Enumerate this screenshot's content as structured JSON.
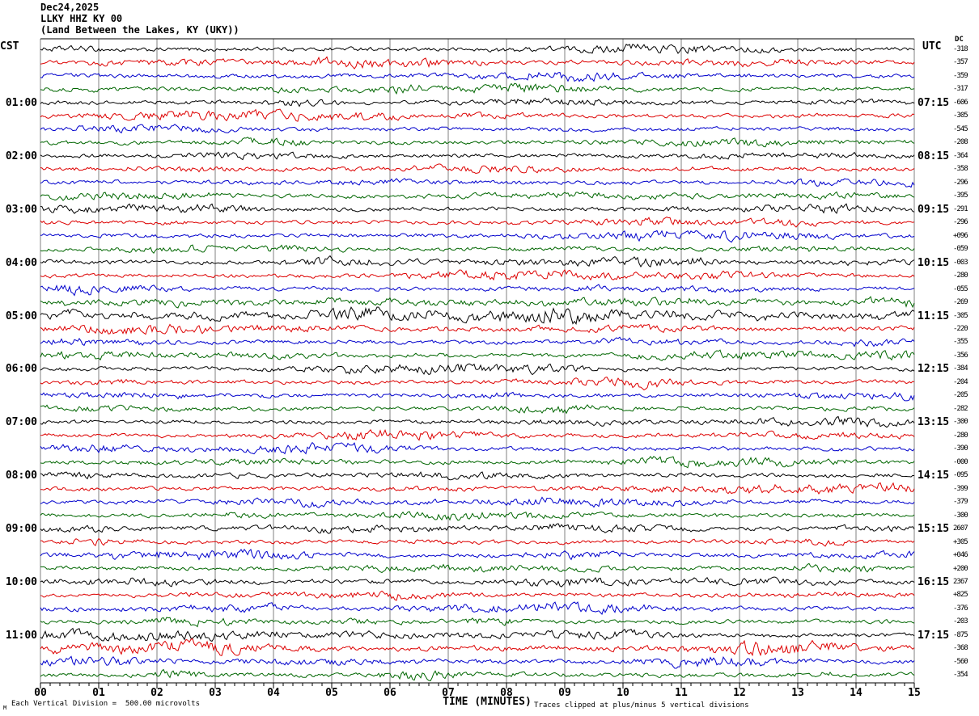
{
  "title": {
    "date": "Dec24,2025",
    "station": "LLKY HHZ KY 00",
    "location": "(Land Between the Lakes, KY (UKY))"
  },
  "axis": {
    "left_header": "CST",
    "right_header": "UTC",
    "dc_header": "DC",
    "x_title": "TIME (MINUTES)",
    "x_tick_labels": [
      "00",
      "01",
      "02",
      "03",
      "04",
      "05",
      "06",
      "07",
      "08",
      "09",
      "10",
      "11",
      "12",
      "13",
      "14",
      "15"
    ]
  },
  "footer": {
    "scale_note": "Each Vertical Division =  500.00 microvolts",
    "clip_note": "Traces clipped at plus/minus 5 vertical divisions",
    "watermark": "M"
  },
  "palette": {
    "black": "#000000",
    "red": "#dd0000",
    "blue": "#0000cc",
    "green": "#006600",
    "grid": "#808080",
    "frame": "#000000"
  },
  "chart_data": {
    "type": "line",
    "subtype": "helicorder-seismogram",
    "title": "LLKY HHZ KY 00 — Dec24,2025",
    "xlabel": "TIME (MINUTES)",
    "x_range_minutes": [
      0,
      15
    ],
    "minutes_per_row": 15,
    "timezone_left": "CST",
    "timezone_right": "UTC",
    "hour_labels_left": [
      "01:00",
      "02:00",
      "03:00",
      "04:00",
      "05:00",
      "06:00",
      "07:00",
      "08:00",
      "09:00",
      "10:00",
      "11:00"
    ],
    "hour_labels_right": [
      "07:15",
      "08:15",
      "09:15",
      "10:15",
      "11:15",
      "12:15",
      "13:15",
      "14:15",
      "15:15",
      "16:15",
      "17:15"
    ],
    "rows": [
      {
        "color": "black",
        "dc": "-318",
        "amp": 1.0
      },
      {
        "color": "red",
        "dc": "-357",
        "amp": 1.0
      },
      {
        "color": "blue",
        "dc": "-359",
        "amp": 1.0
      },
      {
        "color": "green",
        "dc": "-317",
        "amp": 1.0
      },
      {
        "color": "black",
        "dc": "-606",
        "amp": 1.0,
        "cst_label": "01:00",
        "utc_label": "07:15"
      },
      {
        "color": "red",
        "dc": "-305",
        "amp": 1.0
      },
      {
        "color": "blue",
        "dc": "-545",
        "amp": 1.0
      },
      {
        "color": "green",
        "dc": "-208",
        "amp": 1.0
      },
      {
        "color": "black",
        "dc": "-364",
        "amp": 1.0,
        "cst_label": "02:00",
        "utc_label": "08:15"
      },
      {
        "color": "red",
        "dc": "-358",
        "amp": 1.0
      },
      {
        "color": "blue",
        "dc": "-296",
        "amp": 1.0
      },
      {
        "color": "green",
        "dc": "-395",
        "amp": 1.0
      },
      {
        "color": "black",
        "dc": "-291",
        "amp": 1.0,
        "cst_label": "03:00",
        "utc_label": "09:15"
      },
      {
        "color": "red",
        "dc": "-296",
        "amp": 1.0
      },
      {
        "color": "blue",
        "dc": "+096",
        "amp": 1.0
      },
      {
        "color": "green",
        "dc": "-059",
        "amp": 1.0
      },
      {
        "color": "black",
        "dc": "-003",
        "amp": 1.0,
        "cst_label": "04:00",
        "utc_label": "10:15"
      },
      {
        "color": "red",
        "dc": "-280",
        "amp": 1.0
      },
      {
        "color": "blue",
        "dc": "-055",
        "amp": 1.0
      },
      {
        "color": "green",
        "dc": "-269",
        "amp": 1.6
      },
      {
        "color": "black",
        "dc": "-305",
        "amp": 1.9,
        "cst_label": "05:00",
        "utc_label": "11:15"
      },
      {
        "color": "red",
        "dc": "-220",
        "amp": 1.2
      },
      {
        "color": "blue",
        "dc": "-355",
        "amp": 1.0
      },
      {
        "color": "green",
        "dc": "-356",
        "amp": 1.0
      },
      {
        "color": "black",
        "dc": "-384",
        "amp": 1.0,
        "cst_label": "06:00",
        "utc_label": "12:15"
      },
      {
        "color": "red",
        "dc": "-204",
        "amp": 1.0
      },
      {
        "color": "blue",
        "dc": "-205",
        "amp": 1.0
      },
      {
        "color": "green",
        "dc": "-282",
        "amp": 1.0
      },
      {
        "color": "black",
        "dc": "-300",
        "amp": 1.0,
        "cst_label": "07:00",
        "utc_label": "13:15"
      },
      {
        "color": "red",
        "dc": "-280",
        "amp": 1.0
      },
      {
        "color": "blue",
        "dc": "-390",
        "amp": 1.0
      },
      {
        "color": "green",
        "dc": "-000",
        "amp": 1.0
      },
      {
        "color": "black",
        "dc": "-095",
        "amp": 1.0,
        "cst_label": "08:00",
        "utc_label": "14:15"
      },
      {
        "color": "red",
        "dc": "-399",
        "amp": 1.0
      },
      {
        "color": "blue",
        "dc": "-379",
        "amp": 1.0
      },
      {
        "color": "green",
        "dc": "-300",
        "amp": 1.0
      },
      {
        "color": "black",
        "dc": "2607",
        "amp": 1.15,
        "cst_label": "09:00",
        "utc_label": "15:15"
      },
      {
        "color": "red",
        "dc": "+305",
        "amp": 1.0
      },
      {
        "color": "blue",
        "dc": "+046",
        "amp": 1.0
      },
      {
        "color": "green",
        "dc": "+200",
        "amp": 1.0
      },
      {
        "color": "black",
        "dc": "2367",
        "amp": 1.1,
        "cst_label": "10:00",
        "utc_label": "16:15"
      },
      {
        "color": "red",
        "dc": "+825",
        "amp": 1.0
      },
      {
        "color": "blue",
        "dc": "-376",
        "amp": 1.0
      },
      {
        "color": "green",
        "dc": "-203",
        "amp": 1.0
      },
      {
        "color": "black",
        "dc": "-875",
        "amp": 1.0,
        "cst_label": "11:00",
        "utc_label": "17:15"
      },
      {
        "color": "red",
        "dc": "-368",
        "amp": 1.35
      },
      {
        "color": "blue",
        "dc": "-560",
        "amp": 1.1
      },
      {
        "color": "green",
        "dc": "-354",
        "amp": 1.0
      }
    ]
  }
}
